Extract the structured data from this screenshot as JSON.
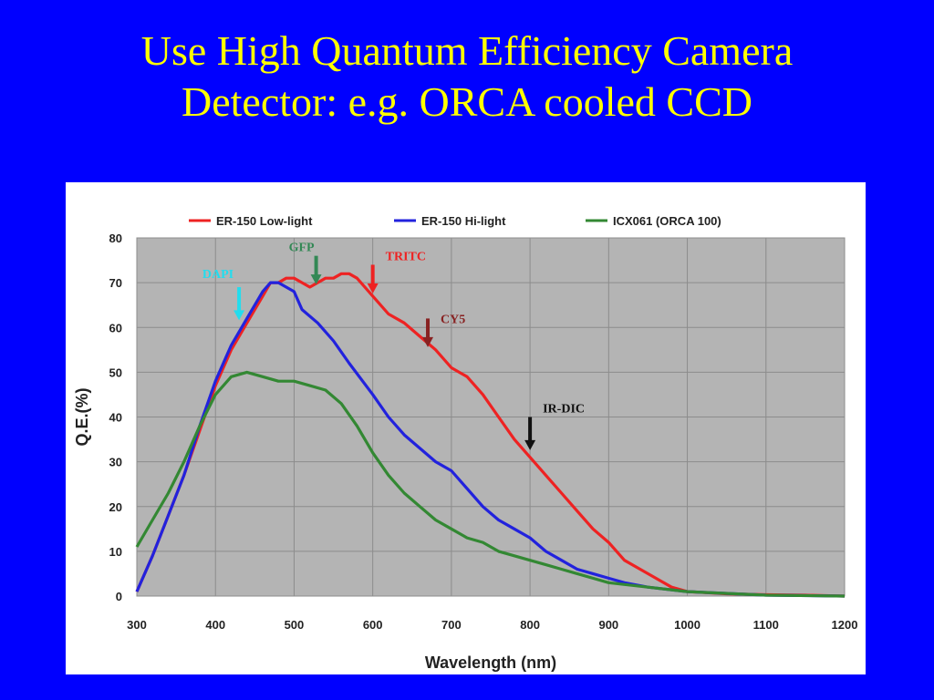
{
  "slide": {
    "title_line1": "Use High Quantum Efficiency Camera",
    "title_line2": "Detector: e.g. ORCA cooled CCD"
  },
  "chart_data": {
    "type": "line",
    "title": "",
    "xlabel": "Wavelength (nm)",
    "ylabel": "Q.E.(%)",
    "xlim": [
      300,
      1200
    ],
    "ylim": [
      0,
      80
    ],
    "xticks": [
      300,
      400,
      500,
      600,
      700,
      800,
      900,
      1000,
      1100,
      1200
    ],
    "yticks": [
      0,
      10,
      20,
      30,
      40,
      50,
      60,
      70,
      80
    ],
    "grid": true,
    "legend_position": "top",
    "plot_background": "#b4b4b4",
    "series": [
      {
        "name": "ER-150  Low-light",
        "color": "#ee2222",
        "points": [
          [
            300,
            1
          ],
          [
            320,
            9
          ],
          [
            340,
            18
          ],
          [
            360,
            27
          ],
          [
            380,
            37
          ],
          [
            400,
            47
          ],
          [
            420,
            55
          ],
          [
            440,
            61
          ],
          [
            460,
            67
          ],
          [
            470,
            70
          ],
          [
            480,
            70
          ],
          [
            490,
            71
          ],
          [
            500,
            71
          ],
          [
            510,
            70
          ],
          [
            520,
            69
          ],
          [
            530,
            70
          ],
          [
            540,
            71
          ],
          [
            550,
            71
          ],
          [
            560,
            72
          ],
          [
            570,
            72
          ],
          [
            580,
            71
          ],
          [
            590,
            69
          ],
          [
            600,
            67
          ],
          [
            620,
            63
          ],
          [
            640,
            61
          ],
          [
            660,
            58
          ],
          [
            680,
            55
          ],
          [
            700,
            51
          ],
          [
            720,
            49
          ],
          [
            740,
            45
          ],
          [
            760,
            40
          ],
          [
            780,
            35
          ],
          [
            800,
            31
          ],
          [
            820,
            27
          ],
          [
            840,
            23
          ],
          [
            860,
            19
          ],
          [
            880,
            15
          ],
          [
            900,
            12
          ],
          [
            920,
            8
          ],
          [
            940,
            6
          ],
          [
            960,
            4
          ],
          [
            980,
            2
          ],
          [
            1000,
            1
          ],
          [
            1050,
            0.5
          ],
          [
            1100,
            0.3
          ],
          [
            1150,
            0.2
          ],
          [
            1200,
            0
          ]
        ]
      },
      {
        "name": "ER-150  Hi-light",
        "color": "#2222dd",
        "points": [
          [
            300,
            1
          ],
          [
            320,
            9
          ],
          [
            340,
            18
          ],
          [
            360,
            27
          ],
          [
            380,
            38
          ],
          [
            400,
            48
          ],
          [
            420,
            56
          ],
          [
            440,
            62
          ],
          [
            460,
            68
          ],
          [
            470,
            70
          ],
          [
            480,
            70
          ],
          [
            490,
            69
          ],
          [
            500,
            68
          ],
          [
            510,
            64
          ],
          [
            530,
            61
          ],
          [
            550,
            57
          ],
          [
            570,
            52
          ],
          [
            600,
            45
          ],
          [
            620,
            40
          ],
          [
            640,
            36
          ],
          [
            660,
            33
          ],
          [
            680,
            30
          ],
          [
            700,
            28
          ],
          [
            720,
            24
          ],
          [
            740,
            20
          ],
          [
            760,
            17
          ],
          [
            780,
            15
          ],
          [
            800,
            13
          ],
          [
            820,
            10
          ],
          [
            840,
            8
          ],
          [
            860,
            6
          ],
          [
            880,
            5
          ],
          [
            900,
            4
          ],
          [
            920,
            3
          ],
          [
            950,
            2
          ],
          [
            1000,
            1
          ],
          [
            1100,
            0.2
          ],
          [
            1200,
            0
          ]
        ]
      },
      {
        "name": "ICX061 (ORCA 100)",
        "color": "#338833",
        "points": [
          [
            300,
            11
          ],
          [
            320,
            17
          ],
          [
            340,
            23
          ],
          [
            360,
            30
          ],
          [
            380,
            38
          ],
          [
            400,
            45
          ],
          [
            420,
            49
          ],
          [
            440,
            50
          ],
          [
            460,
            49
          ],
          [
            480,
            48
          ],
          [
            500,
            48
          ],
          [
            520,
            47
          ],
          [
            540,
            46
          ],
          [
            560,
            43
          ],
          [
            580,
            38
          ],
          [
            600,
            32
          ],
          [
            620,
            27
          ],
          [
            640,
            23
          ],
          [
            660,
            20
          ],
          [
            680,
            17
          ],
          [
            700,
            15
          ],
          [
            720,
            13
          ],
          [
            740,
            12
          ],
          [
            760,
            10
          ],
          [
            780,
            9
          ],
          [
            800,
            8
          ],
          [
            820,
            7
          ],
          [
            840,
            6
          ],
          [
            860,
            5
          ],
          [
            880,
            4
          ],
          [
            900,
            3
          ],
          [
            950,
            2
          ],
          [
            1000,
            1
          ],
          [
            1100,
            0.2
          ],
          [
            1200,
            0
          ]
        ]
      }
    ],
    "annotations": [
      {
        "label": "DAPI",
        "x": 430,
        "y_text": 71,
        "arrow_from": 69,
        "arrow_to": 62,
        "color": "#22ddee"
      },
      {
        "label": "GFP",
        "x": 528,
        "y_text": 77,
        "arrow_from": 76,
        "arrow_to": 70,
        "color": "#338855"
      },
      {
        "label": "TRITC",
        "x": 600,
        "y_text": 75,
        "arrow_from": 74,
        "arrow_to": 68,
        "color": "#ee2222"
      },
      {
        "label": "CY5",
        "x": 670,
        "y_text": 61,
        "arrow_from": 62,
        "arrow_to": 56,
        "color": "#882222"
      },
      {
        "label": "IR-DIC",
        "x": 800,
        "y_text": 41,
        "arrow_from": 40,
        "arrow_to": 33,
        "color": "#111111"
      }
    ]
  }
}
